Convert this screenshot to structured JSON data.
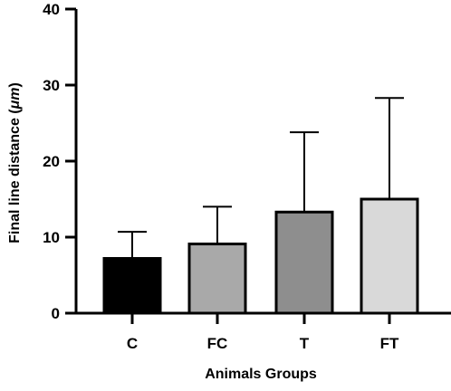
{
  "chart_data": {
    "type": "bar",
    "categories": [
      "C",
      "FC",
      "T",
      "FT"
    ],
    "values": [
      7.2,
      9.1,
      13.3,
      15.0
    ],
    "errors_upper": [
      10.7,
      14.0,
      23.8,
      28.3
    ],
    "colors": [
      "#000000",
      "#a9a9a9",
      "#8e8e8e",
      "#d9d9d9"
    ],
    "xlabel": "Animals Groups",
    "ylabel_main": "Final line distance (",
    "ylabel_unit": "μm",
    "ylabel_end": ")",
    "ylim": [
      0,
      40
    ],
    "yticks": [
      "0",
      "10",
      "20",
      "30",
      "40"
    ],
    "grid": false,
    "error_bars": "upper"
  }
}
